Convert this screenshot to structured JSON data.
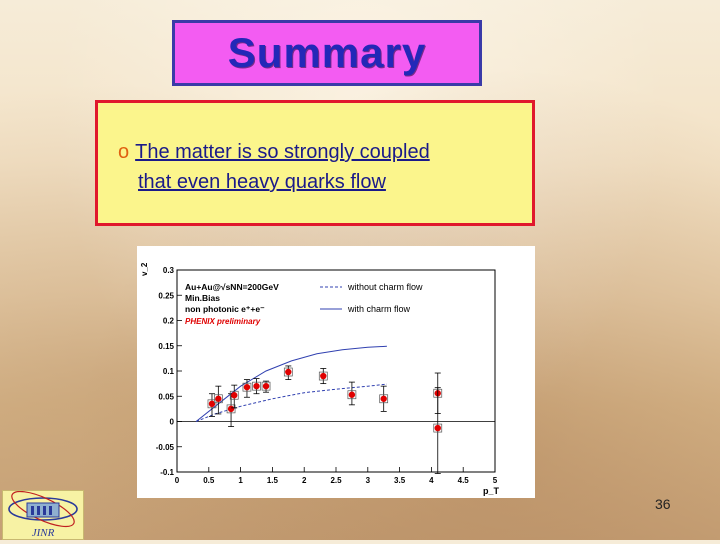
{
  "slide": {
    "title": "Summary",
    "bullet_line1": "The matter is so strongly coupled",
    "bullet_line2": "that even heavy quarks flow",
    "page_number": "36",
    "logo_text": "JINR"
  },
  "colors": {
    "title_bg": "#f35cf2",
    "title_text": "#2328b8",
    "box_bg": "#fbf58c",
    "box_border": "#e0182c",
    "marker": "#e00000"
  },
  "chart_data": {
    "type": "scatter",
    "xlabel": "p_T",
    "ylabel": "v_2",
    "xlim": [
      0,
      5
    ],
    "ylim": [
      -0.1,
      0.3
    ],
    "x_ticks": [
      "0",
      "0.5",
      "1",
      "1.5",
      "2",
      "2.5",
      "3",
      "3.5",
      "4",
      "4.5",
      "5"
    ],
    "y_ticks": [
      "-0.1",
      "-0.05",
      "0",
      "0.05",
      "0.1",
      "0.15",
      "0.2",
      "0.25",
      "0.3"
    ],
    "annotations": {
      "system": "Au+Au@√sNN=200GeV",
      "centrality": "Min.Bias",
      "particle": "non photonic e⁺+e⁻",
      "preliminary": "PHENIX preliminary"
    },
    "legend": [
      {
        "name": "without charm flow",
        "style": "dashed"
      },
      {
        "name": "with charm flow",
        "style": "solid"
      }
    ],
    "curves": [
      {
        "name": "without charm flow",
        "x": [
          0.3,
          0.6,
          1.0,
          1.5,
          2.0,
          2.5,
          3.0,
          3.3
        ],
        "y": [
          0.0,
          0.015,
          0.03,
          0.045,
          0.057,
          0.064,
          0.07,
          0.074
        ]
      },
      {
        "name": "with charm flow",
        "x": [
          0.3,
          0.6,
          1.0,
          1.4,
          1.8,
          2.2,
          2.6,
          3.0,
          3.3
        ],
        "y": [
          0.0,
          0.03,
          0.07,
          0.1,
          0.12,
          0.134,
          0.142,
          0.147,
          0.149
        ]
      }
    ],
    "points": [
      {
        "x": 0.55,
        "y": 0.035,
        "yerr_low": 0.025,
        "yerr_high": 0.02
      },
      {
        "x": 0.65,
        "y": 0.045,
        "yerr_low": 0.03,
        "yerr_high": 0.025
      },
      {
        "x": 0.85,
        "y": 0.025,
        "yerr_low": 0.035,
        "yerr_high": 0.03
      },
      {
        "x": 0.9,
        "y": 0.052,
        "yerr_low": 0.025,
        "yerr_high": 0.02
      },
      {
        "x": 1.1,
        "y": 0.068,
        "yerr_low": 0.02,
        "yerr_high": 0.015
      },
      {
        "x": 1.25,
        "y": 0.07,
        "yerr_low": 0.015,
        "yerr_high": 0.015
      },
      {
        "x": 1.4,
        "y": 0.07,
        "yerr_low": 0.012,
        "yerr_high": 0.01
      },
      {
        "x": 1.75,
        "y": 0.098,
        "yerr_low": 0.015,
        "yerr_high": 0.012
      },
      {
        "x": 2.3,
        "y": 0.09,
        "yerr_low": 0.015,
        "yerr_high": 0.015
      },
      {
        "x": 2.75,
        "y": 0.053,
        "yerr_low": 0.02,
        "yerr_high": 0.025
      },
      {
        "x": 3.25,
        "y": 0.045,
        "yerr_low": 0.025,
        "yerr_high": 0.025
      },
      {
        "x": 4.1,
        "y": 0.056,
        "yerr_low": 0.04,
        "yerr_high": 0.04
      },
      {
        "x": 4.1,
        "y": -0.013,
        "yerr_low": 0.09,
        "yerr_high": 0.08
      }
    ]
  }
}
